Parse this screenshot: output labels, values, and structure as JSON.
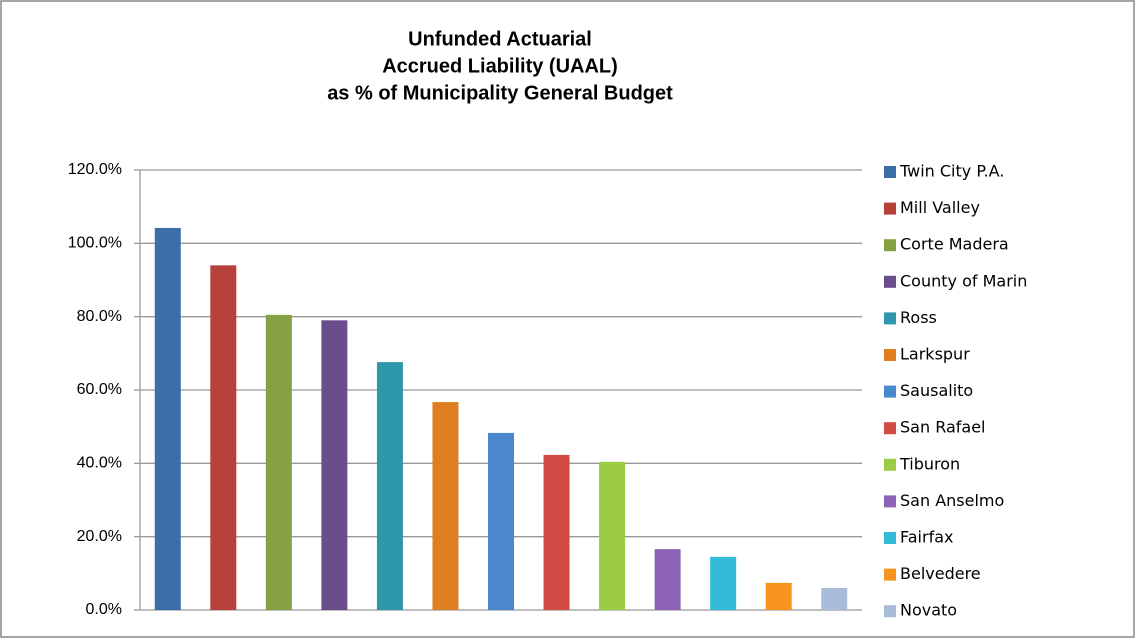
{
  "chart_data": {
    "type": "bar",
    "title": [
      "Unfunded Actuarial",
      "Accrued Liability (UAAL)",
      "as % of Municipality General Budget"
    ],
    "series": [
      {
        "name": "Twin City P.A.",
        "color": "#3c6ea8",
        "values": [
          104.2
        ]
      },
      {
        "name": "Mill Valley",
        "color": "#b6403a",
        "values": [
          94
        ]
      },
      {
        "name": "Corte Madera",
        "color": "#86a044",
        "values": [
          80.5
        ]
      },
      {
        "name": "County of Marin",
        "color": "#6a4d8c",
        "values": [
          79
        ]
      },
      {
        "name": "Ross",
        "color": "#2f97ab",
        "values": [
          67.6
        ]
      },
      {
        "name": "Larkspur",
        "color": "#e07f22",
        "values": [
          56.7
        ]
      },
      {
        "name": "Sausalito",
        "color": "#4a87cc",
        "values": [
          48.3
        ]
      },
      {
        "name": "San Rafael",
        "color": "#d24a44",
        "values": [
          42.3
        ]
      },
      {
        "name": "Tiburon",
        "color": "#9ccc45",
        "values": [
          40.4
        ]
      },
      {
        "name": "San Anselmo",
        "color": "#8d63b8",
        "values": [
          16.6
        ]
      },
      {
        "name": "Fairfax",
        "color": "#33bcd8",
        "values": [
          14.5
        ]
      },
      {
        "name": "Belvedere",
        "color": "#f7941d",
        "values": [
          7.4
        ]
      },
      {
        "name": "Novato",
        "color": "#a9bcd9",
        "values": [
          6
        ]
      }
    ],
    "ylim": [
      0,
      120
    ],
    "yticks": [
      {
        "value": 0,
        "label": "0.0%"
      },
      {
        "value": 20,
        "label": "20.0%"
      },
      {
        "value": 40,
        "label": "40.0%"
      },
      {
        "value": 60,
        "label": "60.0%"
      },
      {
        "value": 80,
        "label": "80.0%"
      },
      {
        "value": 100,
        "label": "100.0%"
      },
      {
        "value": 120,
        "label": "120.0%"
      }
    ],
    "grid": true,
    "legend": "right"
  }
}
